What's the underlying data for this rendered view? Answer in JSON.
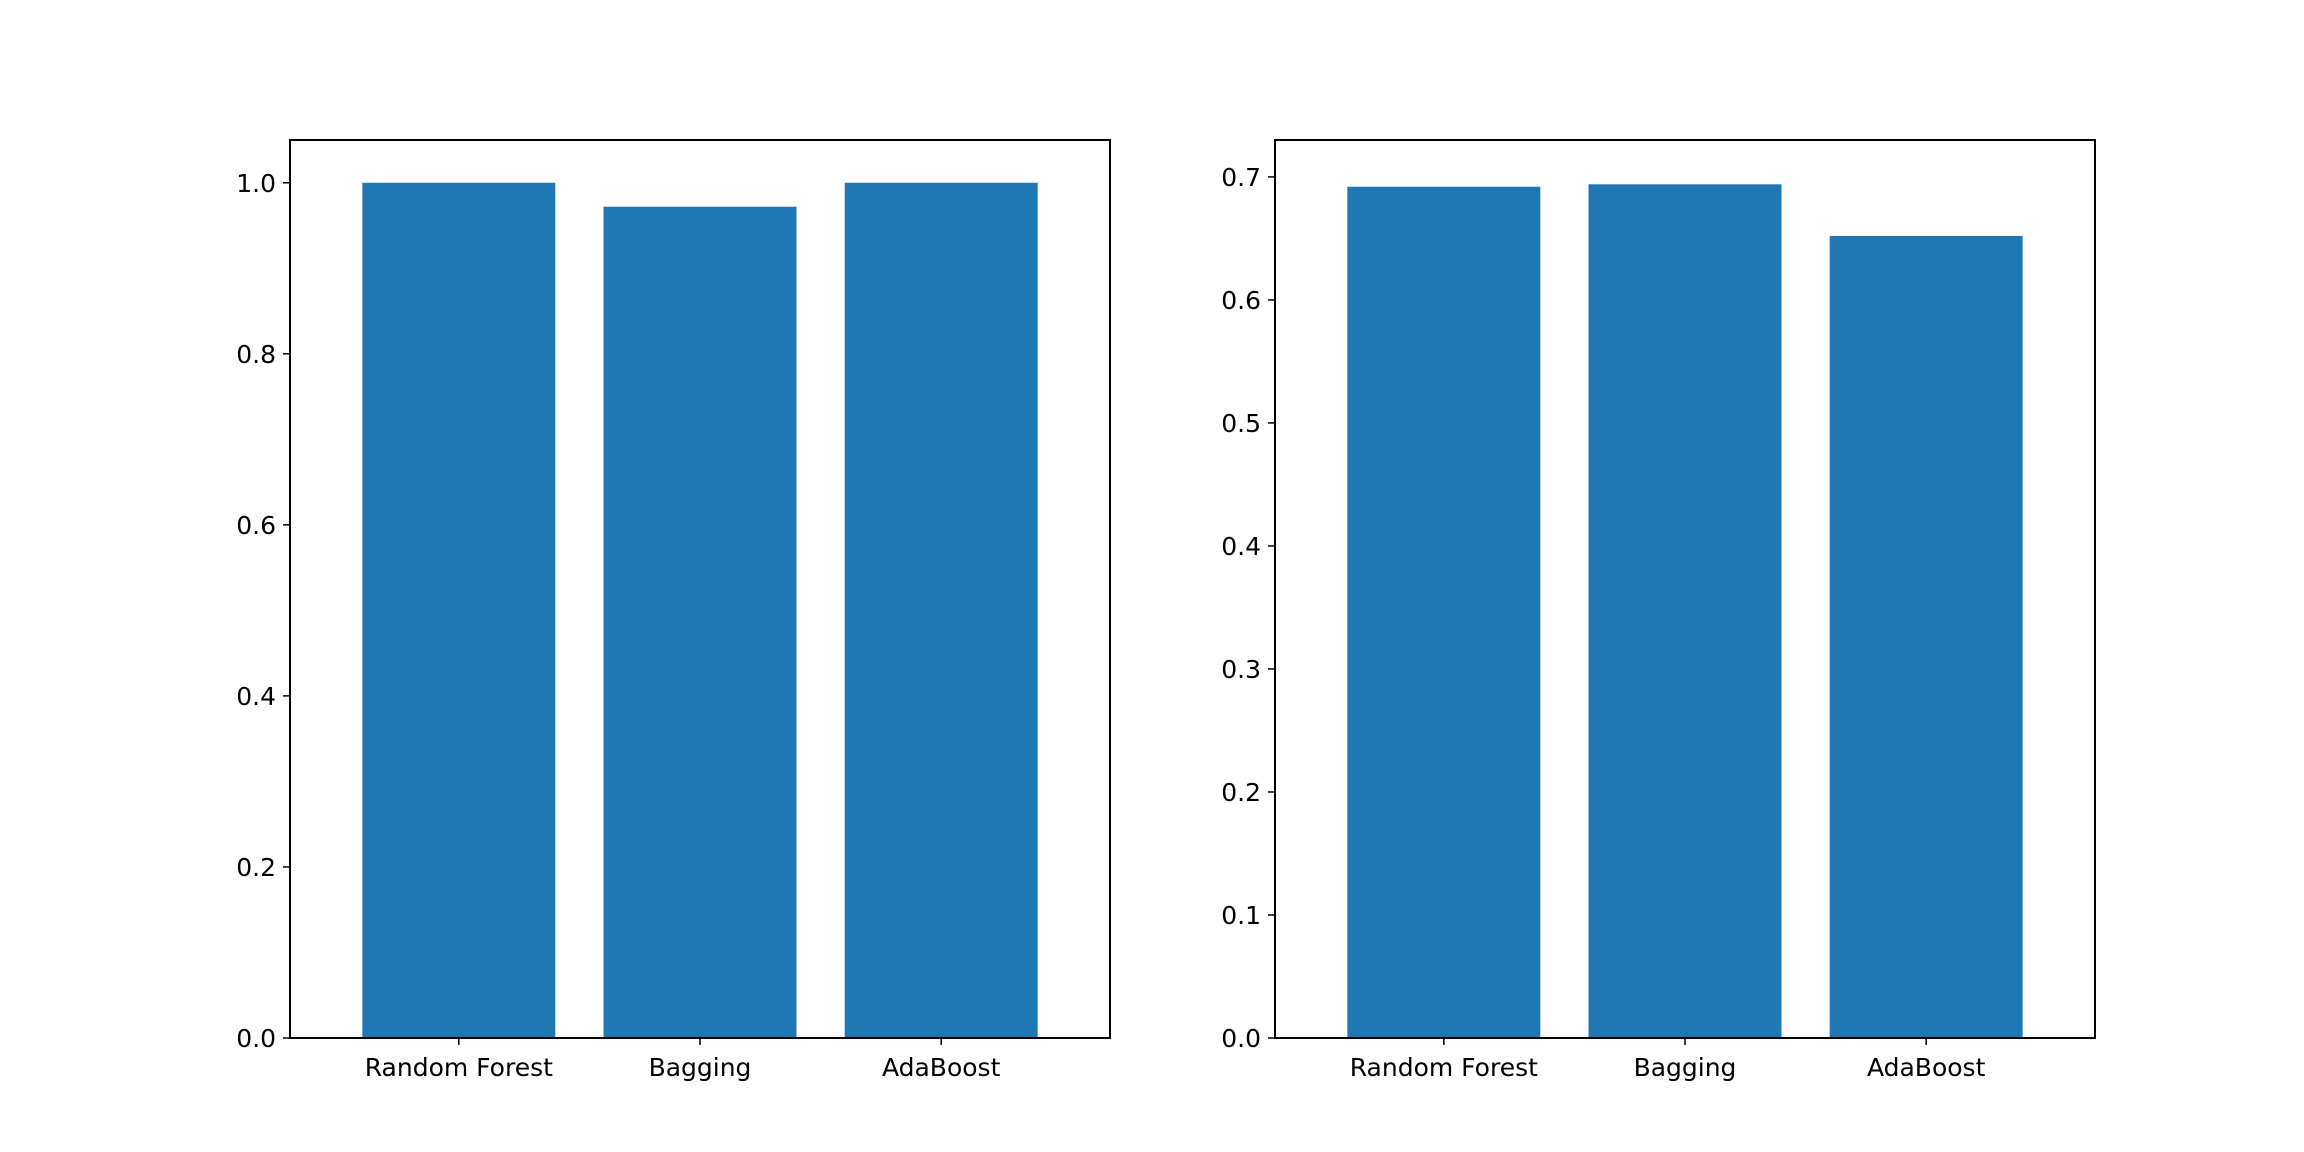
{
  "figure": {
    "background": "#ffffff"
  },
  "chart_data": [
    {
      "type": "bar",
      "categories": [
        "Random Forest",
        "Bagging",
        "AdaBoost"
      ],
      "values": [
        1.0,
        0.972,
        1.0
      ],
      "ylim": [
        0,
        1.05
      ],
      "yticks": [
        0.0,
        0.2,
        0.4,
        0.6,
        0.8,
        1.0
      ],
      "ytick_labels": [
        "0.0",
        "0.2",
        "0.4",
        "0.6",
        "0.8",
        "1.0"
      ],
      "bar_color": "#1f77b4",
      "grid": false
    },
    {
      "type": "bar",
      "categories": [
        "Random Forest",
        "Bagging",
        "AdaBoost"
      ],
      "values": [
        0.692,
        0.694,
        0.652
      ],
      "ylim": [
        0,
        0.73
      ],
      "yticks": [
        0.0,
        0.1,
        0.2,
        0.3,
        0.4,
        0.5,
        0.6,
        0.7
      ],
      "ytick_labels": [
        "0.0",
        "0.1",
        "0.2",
        "0.3",
        "0.4",
        "0.5",
        "0.6",
        "0.7"
      ],
      "bar_color": "#1f77b4",
      "grid": false
    }
  ]
}
